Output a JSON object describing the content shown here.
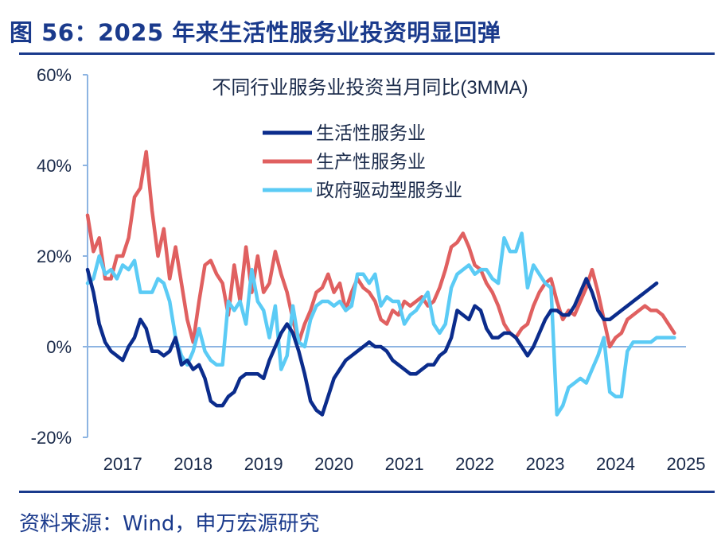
{
  "figure_title": "图 56：2025 年来生活性服务业投资明显回弹",
  "source_note": "资料来源：Wind，申万宏源研究",
  "colors": {
    "brand": "#1a3a8c",
    "axis": "#8db4e2",
    "text": "#1a2a4a"
  },
  "chart_data": {
    "type": "line",
    "title": "不同行业服务业投资当月同比(3MMA)",
    "xlabel": "",
    "ylabel": "",
    "x_start": "2017-01",
    "x_end": "2025-07",
    "x_ticks": [
      "2017",
      "2018",
      "2019",
      "2020",
      "2021",
      "2022",
      "2023",
      "2024",
      "2025"
    ],
    "y_ticks": [
      "60%",
      "40%",
      "20%",
      "0%",
      "-20%"
    ],
    "ylim": [
      -20,
      60
    ],
    "grid": false,
    "legend_position": "top-center",
    "series": [
      {
        "name": "生活性服务业",
        "color": "#0b2c8c",
        "values": [
          17,
          12,
          5,
          1,
          -1,
          -2,
          -3,
          0,
          2,
          6,
          4,
          -1,
          -1,
          -2,
          -1,
          2,
          -4,
          -3,
          -5,
          -4,
          -7,
          -12,
          -13,
          -13,
          -11,
          -10,
          -7,
          -6,
          -6,
          -6,
          -7,
          -3,
          0,
          3,
          5,
          3,
          -1,
          -6,
          -12,
          -14,
          -15,
          -11,
          -7,
          -5,
          -3,
          -2,
          -1,
          0,
          1,
          0,
          0,
          -1,
          -3,
          -4,
          -5,
          -6,
          -6,
          -5,
          -4,
          -4,
          -2,
          -1,
          2,
          8,
          7,
          6,
          9,
          8,
          4,
          2,
          2,
          3,
          3,
          2,
          0,
          -2,
          0,
          3,
          6,
          8,
          8,
          7,
          7,
          9,
          12,
          15,
          12,
          8,
          6,
          6,
          7,
          8,
          9,
          10,
          11,
          12,
          13,
          14
        ],
        "x": [
          "2017-01",
          "2017-02",
          "2017-03",
          "2017-04",
          "2017-05",
          "2017-06",
          "2017-07",
          "2017-08",
          "2017-09",
          "2017-10",
          "2017-11",
          "2017-12",
          "2018-01",
          "2018-02",
          "2018-03",
          "2018-04",
          "2018-05",
          "2018-06",
          "2018-07",
          "2018-08",
          "2018-09",
          "2018-10",
          "2018-11",
          "2018-12",
          "2019-01",
          "2019-02",
          "2019-03",
          "2019-04",
          "2019-05",
          "2019-06",
          "2019-07",
          "2019-08",
          "2019-09",
          "2019-10",
          "2019-11",
          "2019-12",
          "2020-01",
          "2020-02",
          "2020-03",
          "2020-04",
          "2020-05",
          "2020-06",
          "2020-07",
          "2020-08",
          "2020-09",
          "2020-10",
          "2020-11",
          "2020-12",
          "2021-01",
          "2021-02",
          "2021-03",
          "2021-04",
          "2021-05",
          "2021-06",
          "2021-07",
          "2021-08",
          "2021-09",
          "2021-10",
          "2021-11",
          "2021-12",
          "2022-01",
          "2022-02",
          "2022-03",
          "2022-04",
          "2022-05",
          "2022-06",
          "2022-07",
          "2022-08",
          "2022-09",
          "2022-10",
          "2022-11",
          "2022-12",
          "2023-01",
          "2023-02",
          "2023-03",
          "2023-04",
          "2023-05",
          "2023-06",
          "2023-07",
          "2023-08",
          "2023-09",
          "2023-10",
          "2023-11",
          "2023-12",
          "2024-01",
          "2024-02",
          "2024-03",
          "2024-04",
          "2024-05",
          "2024-06",
          "2024-07",
          "2024-08",
          "2024-09",
          "2024-10",
          "2024-11",
          "2024-12",
          "2025-01",
          "2025-02"
        ]
      },
      {
        "name": "生产性服务业",
        "color": "#e06060",
        "values": [
          29,
          21,
          24,
          15,
          15,
          20,
          20,
          24,
          33,
          35,
          43,
          30,
          20,
          26,
          15,
          22,
          14,
          6,
          1,
          10,
          18,
          19,
          16,
          14,
          7,
          18,
          10,
          22,
          12,
          20,
          12,
          14,
          21,
          16,
          12,
          6,
          1,
          5,
          8,
          12,
          13,
          16,
          12,
          14,
          8,
          12,
          15,
          13,
          12,
          10,
          6,
          5,
          8,
          7,
          10,
          9,
          10,
          11,
          9,
          10,
          13,
          17,
          22,
          23,
          25,
          22,
          18,
          17,
          14,
          12,
          9,
          5,
          3,
          2,
          4,
          5,
          9,
          12,
          14,
          15,
          10,
          6,
          8,
          7,
          10,
          13,
          17,
          12,
          6,
          0,
          2,
          3,
          6,
          7,
          8,
          9,
          8,
          8,
          7,
          5,
          3
        ],
        "x": [
          "2017-01",
          "2017-02",
          "2017-03",
          "2017-04",
          "2017-05",
          "2017-06",
          "2017-07",
          "2017-08",
          "2017-09",
          "2017-10",
          "2017-11",
          "2017-12",
          "2018-01",
          "2018-02",
          "2018-03",
          "2018-04",
          "2018-05",
          "2018-06",
          "2018-07",
          "2018-08",
          "2018-09",
          "2018-10",
          "2018-11",
          "2018-12",
          "2019-01",
          "2019-02",
          "2019-03",
          "2019-04",
          "2019-05",
          "2019-06",
          "2019-07",
          "2019-08",
          "2019-09",
          "2019-10",
          "2019-11",
          "2019-12",
          "2020-01",
          "2020-02",
          "2020-03",
          "2020-04",
          "2020-05",
          "2020-06",
          "2020-07",
          "2020-08",
          "2020-09",
          "2020-10",
          "2020-11",
          "2020-12",
          "2021-01",
          "2021-02",
          "2021-03",
          "2021-04",
          "2021-05",
          "2021-06",
          "2021-07",
          "2021-08",
          "2021-09",
          "2021-10",
          "2021-11",
          "2021-12",
          "2022-01",
          "2022-02",
          "2022-03",
          "2022-04",
          "2022-05",
          "2022-06",
          "2022-07",
          "2022-08",
          "2022-09",
          "2022-10",
          "2022-11",
          "2022-12",
          "2023-01",
          "2023-02",
          "2023-03",
          "2023-04",
          "2023-05",
          "2023-06",
          "2023-07",
          "2023-08",
          "2023-09",
          "2023-10",
          "2023-11",
          "2023-12",
          "2024-01",
          "2024-02",
          "2024-03",
          "2024-04",
          "2024-05",
          "2024-06",
          "2024-07",
          "2024-08",
          "2024-09",
          "2024-10",
          "2024-11",
          "2024-12",
          "2025-01",
          "2025-02",
          "2025-03",
          "2025-04",
          "2025-05"
        ]
      },
      {
        "name": "政府驱动型服务业",
        "color": "#5bcbf5",
        "values": [
          14,
          15,
          20,
          16,
          17,
          15,
          18,
          17,
          19,
          12,
          12,
          12,
          15,
          14,
          10,
          2,
          -2,
          -4,
          -1,
          4,
          -1,
          -3,
          -4,
          -4,
          10,
          8,
          10,
          5,
          17,
          10,
          8,
          2,
          9,
          -5,
          -2,
          9,
          1,
          0,
          6,
          9,
          10,
          10,
          9,
          10,
          8,
          9,
          16,
          16,
          14,
          16,
          9,
          11,
          10,
          10,
          5,
          7,
          8,
          10,
          12,
          5,
          3,
          5,
          13,
          16,
          17,
          18,
          16,
          17,
          17,
          15,
          14,
          24,
          21,
          21,
          25,
          13,
          18,
          16,
          14,
          13,
          -15,
          -13,
          -9,
          -8,
          -7,
          -8,
          -5,
          -2,
          2,
          -10,
          -11,
          -11,
          -1,
          1,
          1,
          1,
          1,
          2,
          2,
          2,
          2
        ],
        "x": [
          "2017-01",
          "2017-02",
          "2017-03",
          "2017-04",
          "2017-05",
          "2017-06",
          "2017-07",
          "2017-08",
          "2017-09",
          "2017-10",
          "2017-11",
          "2017-12",
          "2018-01",
          "2018-02",
          "2018-03",
          "2018-04",
          "2018-05",
          "2018-06",
          "2018-07",
          "2018-08",
          "2018-09",
          "2018-10",
          "2018-11",
          "2018-12",
          "2019-01",
          "2019-02",
          "2019-03",
          "2019-04",
          "2019-05",
          "2019-06",
          "2019-07",
          "2019-08",
          "2019-09",
          "2019-10",
          "2019-11",
          "2019-12",
          "2020-01",
          "2020-02",
          "2020-03",
          "2020-04",
          "2020-05",
          "2020-06",
          "2020-07",
          "2020-08",
          "2020-09",
          "2020-10",
          "2020-11",
          "2020-12",
          "2021-01",
          "2021-02",
          "2021-03",
          "2021-04",
          "2021-05",
          "2021-06",
          "2021-07",
          "2021-08",
          "2021-09",
          "2021-10",
          "2021-11",
          "2021-12",
          "2022-01",
          "2022-02",
          "2022-03",
          "2022-04",
          "2022-05",
          "2022-06",
          "2022-07",
          "2022-08",
          "2022-09",
          "2022-10",
          "2022-11",
          "2022-12",
          "2023-01",
          "2023-02",
          "2023-03",
          "2023-04",
          "2023-05",
          "2023-06",
          "2023-07",
          "2023-08",
          "2023-09",
          "2023-10",
          "2023-11",
          "2023-12",
          "2024-01",
          "2024-02",
          "2024-03",
          "2024-04",
          "2024-05",
          "2024-06",
          "2024-07",
          "2024-08",
          "2024-09",
          "2024-10",
          "2024-11",
          "2024-12",
          "2025-01",
          "2025-02",
          "2025-03",
          "2025-04",
          "2025-05"
        ]
      }
    ]
  }
}
